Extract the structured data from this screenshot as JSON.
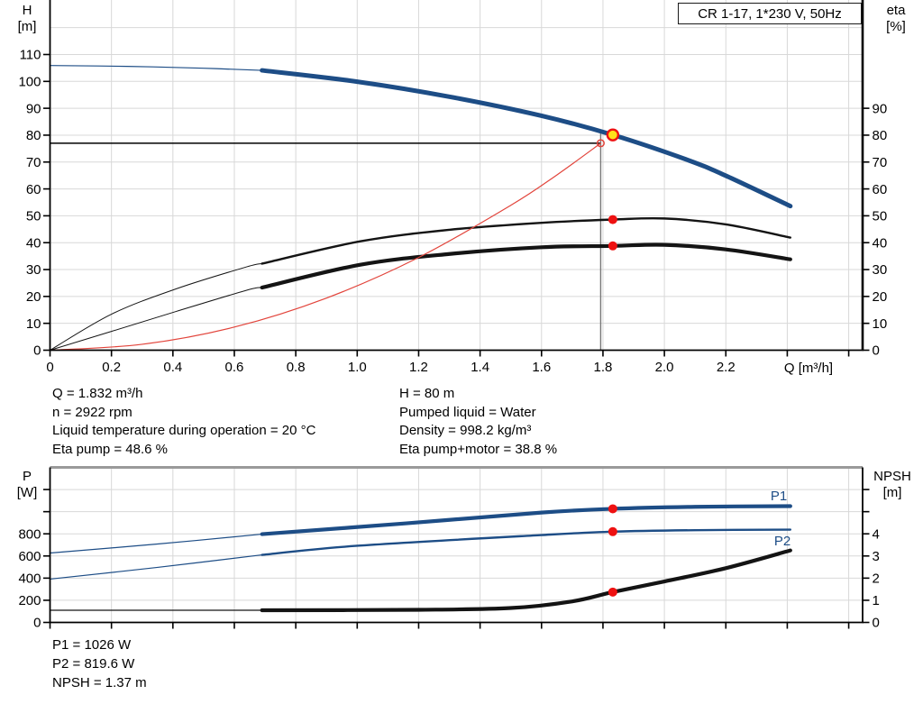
{
  "title_box": {
    "label": "CR 1-17, 1*230 V, 50Hz"
  },
  "axis_titles": {
    "h": "H",
    "h_unit": "[m]",
    "eta": "eta",
    "eta_unit": "[%]",
    "q": "Q [m³/h]",
    "p": "P",
    "p_unit": "[W]",
    "npsh": "NPSH",
    "npsh_unit": "[m]"
  },
  "curve_labels": {
    "p1": "P1",
    "p2": "P2"
  },
  "info_text": {
    "left": [
      "Q = 1.832 m³/h",
      "n = 2922 rpm",
      "Liquid temperature during operation = 20 °C",
      "Eta pump = 48.6 %"
    ],
    "right": [
      "H = 80 m",
      "Pumped liquid = Water",
      "Density = 998.2 kg/m³",
      "Eta pump+motor = 38.8 %"
    ]
  },
  "result_text": [
    "P1 = 1026 W",
    "P2 = 819.6 W",
    "NPSH = 1.37 m"
  ],
  "colors": {
    "blue": "#1d4d86",
    "black": "#141414",
    "red": "#e2443b",
    "dot_red": "#ee1111",
    "dot_yellow": "#ffe01a",
    "grid": "#d8d8d8",
    "axis": "#000000",
    "vline": "#787878",
    "top_border": "#9a9a9a"
  },
  "chart_data": [
    {
      "type": "line",
      "title": "CR 1-17, 1*230 V, 50Hz",
      "xlabel": "Q [m³/h]",
      "ylabel_left": "H [m]",
      "ylabel_right": "eta [%]",
      "xlim": [
        0,
        2.64
      ],
      "ylim_left": [
        0,
        130
      ],
      "ylim_right": [
        0,
        130
      ],
      "grid": true,
      "x_ticks": [
        0,
        0.2,
        0.4,
        0.6,
        0.8,
        1.0,
        1.2,
        1.4,
        1.6,
        1.8,
        2.0,
        2.2,
        2.4,
        2.6
      ],
      "x_tick_labels": [
        "0",
        "0.2",
        "0.4",
        "0.6",
        "0.8",
        "1.0",
        "1.2",
        "1.4",
        "1.6",
        "1.8",
        "2.0",
        "2.2",
        "",
        ""
      ],
      "y_ticks_left": [
        0,
        10,
        20,
        30,
        40,
        50,
        60,
        70,
        80,
        90,
        100,
        110
      ],
      "y_ticks_right": [
        0,
        10,
        20,
        30,
        40,
        50,
        60,
        70,
        80,
        90
      ],
      "y_grid": [
        10,
        20,
        30,
        40,
        50,
        60,
        70,
        80,
        90,
        100,
        110,
        120
      ],
      "series": [
        {
          "name": "qh-curve-low-flow",
          "legend": "QH below min. flow",
          "axis": "left",
          "color": "blue",
          "width": 1.2,
          "points": [
            [
              0,
              105.9
            ],
            [
              0.25,
              105.6
            ],
            [
              0.5,
              104.9
            ],
            [
              0.69,
              104.1
            ]
          ]
        },
        {
          "name": "qh-curve",
          "legend": "QH",
          "axis": "left",
          "color": "blue",
          "width": 5,
          "points": [
            [
              0.69,
              104.1
            ],
            [
              1.0,
              99.9
            ],
            [
              1.3,
              94.3
            ],
            [
              1.6,
              87.2
            ],
            [
              1.832,
              80.1
            ],
            [
              2.07,
              71.0
            ],
            [
              2.2,
              64.9
            ],
            [
              2.41,
              53.6
            ]
          ]
        },
        {
          "name": "eta-pump-low-flow",
          "legend": "Eta pump below min. flow",
          "axis": "right",
          "color": "black",
          "width": 1,
          "points": [
            [
              0,
              0
            ],
            [
              0.2,
              13.4
            ],
            [
              0.41,
              22.8
            ],
            [
              0.64,
              31.0
            ],
            [
              0.69,
              32.2
            ]
          ]
        },
        {
          "name": "eta-pump-curve",
          "legend": "Eta pump",
          "axis": "right",
          "color": "black",
          "width": 2.4,
          "points": [
            [
              0.69,
              32.2
            ],
            [
              1.01,
              40.5
            ],
            [
              1.3,
              44.8
            ],
            [
              1.6,
              47.4
            ],
            [
              1.832,
              48.6
            ],
            [
              2.0,
              49.0
            ],
            [
              2.2,
              46.8
            ],
            [
              2.41,
              41.9
            ]
          ]
        },
        {
          "name": "eta-pump-motor-low-flow",
          "legend": "Eta pump+motor below min. flow",
          "axis": "right",
          "color": "black",
          "width": 1,
          "points": [
            [
              0,
              0
            ],
            [
              0.2,
              7.0
            ],
            [
              0.41,
              14.4
            ],
            [
              0.64,
              22.3
            ],
            [
              0.69,
              23.3
            ]
          ]
        },
        {
          "name": "eta-pump-motor-curve",
          "legend": "Eta pump+motor",
          "axis": "right",
          "color": "black",
          "width": 4.2,
          "points": [
            [
              0.69,
              23.3
            ],
            [
              1.01,
              31.8
            ],
            [
              1.3,
              35.8
            ],
            [
              1.6,
              38.3
            ],
            [
              1.832,
              38.8
            ],
            [
              2.0,
              39.2
            ],
            [
              2.2,
              37.5
            ],
            [
              2.41,
              33.8
            ]
          ]
        },
        {
          "name": "system-curve",
          "legend": "System curve",
          "axis": "left",
          "color": "red",
          "width": 1.2,
          "points": [
            [
              0,
              0
            ],
            [
              0.3,
              2.2
            ],
            [
              0.6,
              8.6
            ],
            [
              0.9,
              19.4
            ],
            [
              1.2,
              34.5
            ],
            [
              1.5,
              53.9
            ],
            [
              1.65,
              65.2
            ],
            [
              1.7926,
              77
            ]
          ]
        }
      ],
      "markers": [
        {
          "name": "requested-duty-point",
          "style": "open-red",
          "q": 1.7926,
          "value": 77,
          "axis": "left",
          "r": 3.8
        },
        {
          "name": "duty-point",
          "style": "yellow-red",
          "q": 1.832,
          "value": 80.1,
          "axis": "left",
          "r": 6
        },
        {
          "name": "eta-pump-point",
          "style": "red",
          "q": 1.832,
          "value": 48.6,
          "axis": "right",
          "r": 5
        },
        {
          "name": "eta-pump-motor-point",
          "style": "red",
          "q": 1.832,
          "value": 38.8,
          "axis": "right",
          "r": 5
        }
      ],
      "duty_lines": {
        "h_value": 77,
        "h_q_end": 1.7926,
        "v_q": 1.7926,
        "v_top_value": 81
      }
    },
    {
      "type": "line",
      "title": "",
      "xlabel": "",
      "ylabel_left": "P [W]",
      "ylabel_right": "NPSH [m]",
      "xlim": [
        0,
        2.64
      ],
      "ylim_left": [
        0,
        1400
      ],
      "ylim_right": [
        0,
        7
      ],
      "grid": true,
      "x_ticks": [
        0,
        0.2,
        0.4,
        0.6,
        0.8,
        1.0,
        1.2,
        1.4,
        1.6,
        1.8,
        2.0,
        2.2,
        2.4,
        2.6
      ],
      "x_tick_labels": [
        "",
        "",
        "",
        "",
        "",
        "",
        "",
        "",
        "",
        "",
        "",
        "",
        "",
        ""
      ],
      "y_ticks_left": [
        0,
        200,
        400,
        600,
        800,
        1000,
        1200
      ],
      "y_tick_labels_left": [
        "0",
        "200",
        "400",
        "600",
        "800",
        "",
        ""
      ],
      "y_ticks_right": [
        0,
        1,
        2,
        3,
        4,
        5,
        6
      ],
      "y_tick_labels_right": [
        "0",
        "1",
        "2",
        "3",
        "4",
        "",
        ""
      ],
      "y_grid": [
        200,
        400,
        600,
        800,
        1000,
        1200
      ],
      "series": [
        {
          "name": "p1-curve-low-flow",
          "legend": "P1 below min. flow",
          "axis": "left",
          "color": "blue",
          "width": 1.2,
          "points": [
            [
              0,
              627
            ],
            [
              0.35,
              708
            ],
            [
              0.69,
              797
            ]
          ]
        },
        {
          "name": "p1-curve",
          "legend": "P1",
          "axis": "left",
          "color": "blue",
          "width": 4.2,
          "points": [
            [
              0.69,
              797
            ],
            [
              1.16,
              895
            ],
            [
              1.6,
              992
            ],
            [
              1.832,
              1026
            ],
            [
              2.1,
              1044
            ],
            [
              2.41,
              1050
            ]
          ]
        },
        {
          "name": "p2-curve-low-flow",
          "legend": "P2 below min. flow",
          "axis": "left",
          "color": "blue",
          "width": 1.2,
          "points": [
            [
              0,
              391
            ],
            [
              0.35,
              497
            ],
            [
              0.69,
              610
            ]
          ]
        },
        {
          "name": "p2-curve",
          "legend": "P2",
          "axis": "left",
          "color": "blue",
          "width": 2.4,
          "points": [
            [
              0.69,
              610
            ],
            [
              1.0,
              692
            ],
            [
              1.6,
              789
            ],
            [
              1.832,
              819.6
            ],
            [
              2.1,
              833
            ],
            [
              2.41,
              838
            ]
          ]
        },
        {
          "name": "npsh-curve-low-flow",
          "legend": "NPSH below min. flow",
          "axis": "right",
          "color": "black",
          "width": 1.2,
          "points": [
            [
              0,
              0.55
            ],
            [
              0.69,
              0.55
            ]
          ]
        },
        {
          "name": "npsh-curve",
          "legend": "NPSH",
          "axis": "right",
          "color": "black",
          "width": 4.2,
          "points": [
            [
              0.69,
              0.55
            ],
            [
              1.2,
              0.57
            ],
            [
              1.5,
              0.65
            ],
            [
              1.7,
              0.95
            ],
            [
              1.832,
              1.37
            ],
            [
              2.0,
              1.85
            ],
            [
              2.2,
              2.45
            ],
            [
              2.41,
              3.25
            ]
          ]
        }
      ],
      "markers": [
        {
          "name": "p1-point",
          "style": "red",
          "q": 1.832,
          "value": 1026,
          "axis": "left",
          "r": 5
        },
        {
          "name": "p2-point",
          "style": "red",
          "q": 1.832,
          "value": 819.6,
          "axis": "left",
          "r": 5
        },
        {
          "name": "npsh-point",
          "style": "red",
          "q": 1.832,
          "value": 1.37,
          "axis": "right",
          "r": 5
        }
      ]
    }
  ]
}
